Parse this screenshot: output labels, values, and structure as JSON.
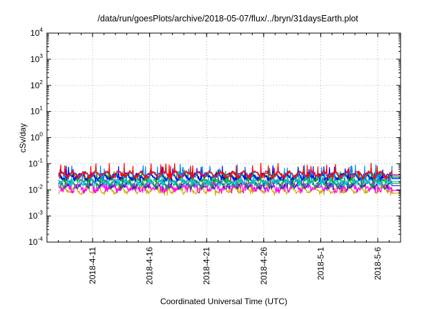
{
  "chart_data": {
    "type": "line",
    "title": "/data/run/goesPlots/archive/2018-05-07/flux/../bryn/31daysEarth.plot",
    "xlabel": "Coordinated Universal Time (UTC)",
    "ylabel": "cSv/day",
    "yscale": "log",
    "ylim": [
      0.0001,
      10000
    ],
    "xlim": [
      "2018-04-07",
      "2018-05-08"
    ],
    "grid": true,
    "y_ticks": [
      {
        "base": "10",
        "exp": "-4",
        "value": 0.0001
      },
      {
        "base": "10",
        "exp": "-3",
        "value": 0.001
      },
      {
        "base": "10",
        "exp": "-2",
        "value": 0.01
      },
      {
        "base": "10",
        "exp": "-1",
        "value": 0.1
      },
      {
        "base": "10",
        "exp": "0",
        "value": 1
      },
      {
        "base": "10",
        "exp": "1",
        "value": 10
      },
      {
        "base": "10",
        "exp": "2",
        "value": 100
      },
      {
        "base": "10",
        "exp": "3",
        "value": 1000
      },
      {
        "base": "10",
        "exp": "4",
        "value": 10000
      }
    ],
    "x_ticks": [
      {
        "label": "2018-4-11",
        "date": "2018-04-11"
      },
      {
        "label": "2018-4-16",
        "date": "2018-04-16"
      },
      {
        "label": "2018-4-21",
        "date": "2018-04-21"
      },
      {
        "label": "2018-4-26",
        "date": "2018-04-26"
      },
      {
        "label": "2018-5-1",
        "date": "2018-05-01"
      },
      {
        "label": "2018-5-6",
        "date": "2018-05-06"
      }
    ],
    "series": [
      {
        "color": "#ff0000",
        "x_start": "2018-04-08",
        "x_end": "2018-05-08",
        "base": 0.04,
        "spike": 0.105,
        "noise": 0.16,
        "end_value": 0.038
      },
      {
        "color": "#00b000",
        "x_start": "2018-04-08",
        "x_end": "2018-05-08",
        "base": 0.03,
        "spike": 0.06,
        "noise": 0.14,
        "end_value": 0.03
      },
      {
        "color": "#0000ff",
        "x_start": "2018-04-08",
        "x_end": "2018-05-08",
        "base": 0.034,
        "spike": 0.085,
        "noise": 0.14,
        "end_value": 0.027
      },
      {
        "color": "#ff00ff",
        "x_start": "2018-04-08",
        "x_end": "2018-05-08",
        "base": 0.0125,
        "spike": 0.025,
        "noise": 0.22,
        "end_value": 0.0095
      },
      {
        "color": "#00cccc",
        "x_start": "2018-04-08",
        "x_end": "2018-05-08",
        "base": 0.022,
        "spike": 0.045,
        "noise": 0.18,
        "end_value": 0.021
      },
      {
        "color": "#d4b000",
        "x_start": "2018-04-08",
        "x_end": "2018-05-08",
        "base": 0.01,
        "spike": 0.018,
        "noise": 0.12,
        "end_value": 0.0075
      },
      {
        "color": "#0088ff",
        "x_start": "2018-04-08",
        "x_end": "2018-05-08",
        "base": 0.038,
        "spike": 0.095,
        "noise": 0.15,
        "end_value": 0.034
      },
      {
        "color": "#1a3aa0",
        "x_start": "2018-04-08",
        "x_end": "2018-05-08",
        "base": 0.016,
        "spike": 0.03,
        "noise": 0.15,
        "end_value": 0.0145
      },
      {
        "color": "#2f8f6f",
        "x_start": "2018-04-08",
        "x_end": "2018-05-08",
        "base": 0.019,
        "spike": 0.04,
        "noise": 0.16,
        "end_value": 0.018
      }
    ]
  }
}
